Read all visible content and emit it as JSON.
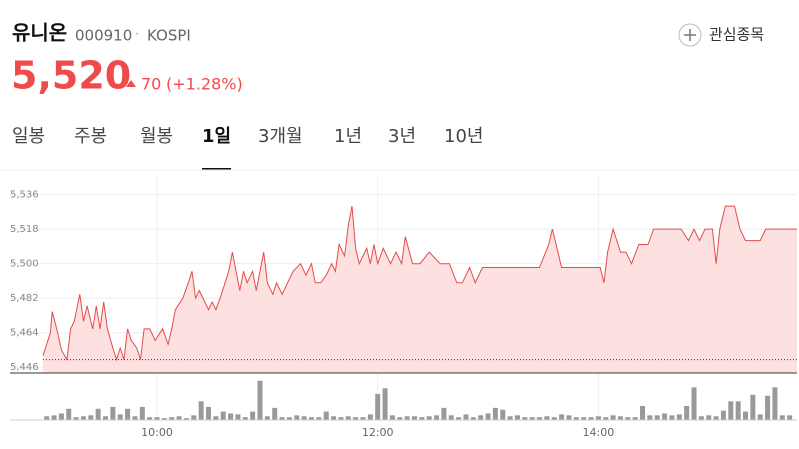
{
  "header": {
    "name": "유니온",
    "code": "000910",
    "separator": "·",
    "market": "KOSPI",
    "watch": "관심종목",
    "price": "5,520",
    "change": "70",
    "change_pct": "(+1.28%)"
  },
  "tabs": [
    "일봉",
    "주봉",
    "월봉",
    "1일",
    "3개월",
    "1년",
    "3년",
    "10년"
  ],
  "active_tab": 3,
  "chart_data": {
    "type": "line",
    "step": true,
    "color": "#e34b4b",
    "area_color": "#fde1e1",
    "baseline": 5450,
    "grid": true,
    "xlim": [
      538,
      948
    ],
    "ylim": [
      5443,
      5541
    ],
    "xticks": [
      {
        "value": 600,
        "label": "10:00"
      },
      {
        "value": 720,
        "label": "12:00"
      },
      {
        "value": 840,
        "label": "14:00"
      }
    ],
    "yticks": [
      {
        "value": 5446,
        "label": "5,446"
      },
      {
        "value": 5464,
        "label": "5,464"
      },
      {
        "value": 5482,
        "label": "5,482"
      },
      {
        "value": 5500,
        "label": "5,500"
      },
      {
        "value": 5518,
        "label": "5,518"
      },
      {
        "value": 5536,
        "label": "5,536"
      }
    ],
    "x": [
      538,
      542,
      543,
      546,
      548,
      551,
      553,
      555,
      558,
      560,
      562,
      565,
      567,
      569,
      571,
      573,
      576,
      578,
      580,
      582,
      584,
      586,
      589,
      591,
      593,
      596,
      599,
      603,
      606,
      608,
      610,
      614,
      617,
      619,
      621,
      623,
      626,
      628,
      630,
      632,
      635,
      639,
      641,
      643,
      645,
      647,
      649,
      652,
      654,
      656,
      658,
      660,
      663,
      665,
      668,
      671,
      674,
      678,
      681,
      684,
      686,
      689,
      692,
      695,
      697,
      699,
      702,
      704,
      706,
      708,
      710,
      714,
      716,
      718,
      720,
      723,
      727,
      730,
      733,
      735,
      739,
      743,
      748,
      754,
      759,
      763,
      766,
      770,
      773,
      777,
      786,
      797,
      808,
      813,
      815,
      817,
      820,
      830,
      841,
      843,
      845,
      848,
      852,
      855,
      858,
      862,
      867,
      870,
      879,
      885,
      889,
      892,
      895,
      898,
      902,
      904,
      906,
      909,
      914,
      917,
      920,
      923,
      928,
      931,
      948
    ],
    "series": [
      {
        "name": "price",
        "values": [
          5452,
          5464,
          5475,
          5464,
          5455,
          5450,
          5466,
          5470,
          5484,
          5470,
          5478,
          5466,
          5478,
          5466,
          5480,
          5466,
          5456,
          5450,
          5456,
          5450,
          5466,
          5460,
          5456,
          5450,
          5466,
          5466,
          5460,
          5466,
          5458,
          5466,
          5476,
          5482,
          5490,
          5496,
          5482,
          5486,
          5480,
          5476,
          5480,
          5476,
          5484,
          5496,
          5506,
          5496,
          5486,
          5496,
          5490,
          5496,
          5486,
          5496,
          5506,
          5490,
          5484,
          5490,
          5484,
          5490,
          5496,
          5500,
          5494,
          5500,
          5490,
          5490,
          5494,
          5500,
          5496,
          5510,
          5504,
          5520,
          5530,
          5508,
          5500,
          5508,
          5500,
          5510,
          5500,
          5508,
          5500,
          5506,
          5500,
          5514,
          5500,
          5500,
          5506,
          5500,
          5500,
          5490,
          5490,
          5498,
          5490,
          5498,
          5498,
          5498,
          5498,
          5510,
          5518,
          5510,
          5498,
          5498,
          5498,
          5490,
          5506,
          5518,
          5506,
          5506,
          5500,
          5510,
          5510,
          5518,
          5518,
          5518,
          5512,
          5518,
          5512,
          5518,
          5518,
          5500,
          5518,
          5530,
          5530,
          5518,
          5512,
          5512,
          5512,
          5518,
          5518
        ]
      }
    ],
    "volume": {
      "color": "#999999",
      "vlim": [
        0,
        45
      ],
      "x": [
        540,
        544,
        548,
        552,
        556,
        560,
        564,
        568,
        572,
        576,
        580,
        584,
        588,
        592,
        596,
        600,
        604,
        608,
        612,
        616,
        620,
        624,
        628,
        632,
        636,
        640,
        644,
        648,
        652,
        656,
        660,
        664,
        668,
        672,
        676,
        680,
        684,
        688,
        692,
        696,
        700,
        704,
        708,
        712,
        716,
        720,
        724,
        728,
        732,
        736,
        740,
        744,
        748,
        752,
        756,
        760,
        764,
        768,
        772,
        776,
        780,
        784,
        788,
        792,
        796,
        800,
        804,
        808,
        812,
        816,
        820,
        824,
        828,
        832,
        836,
        840,
        844,
        848,
        852,
        856,
        860,
        864,
        868,
        872,
        876,
        880,
        884,
        888,
        892,
        896,
        900,
        904,
        908,
        912,
        916,
        920,
        924,
        928,
        932,
        936,
        940,
        944
      ],
      "values": [
        4,
        5,
        7,
        12,
        3,
        4,
        5,
        12,
        4,
        14,
        6,
        12,
        4,
        14,
        3,
        3,
        2,
        3,
        4,
        2,
        5,
        20,
        14,
        4,
        9,
        7,
        6,
        3,
        9,
        42,
        4,
        13,
        3,
        3,
        5,
        4,
        3,
        3,
        9,
        4,
        3,
        4,
        3,
        3,
        6,
        28,
        34,
        5,
        3,
        4,
        4,
        3,
        4,
        5,
        13,
        5,
        3,
        6,
        3,
        5,
        7,
        13,
        11,
        4,
        5,
        3,
        3,
        3,
        4,
        3,
        6,
        5,
        3,
        3,
        3,
        4,
        3,
        5,
        4,
        3,
        3,
        15,
        5,
        5,
        7,
        5,
        6,
        15,
        35,
        4,
        5,
        4,
        10,
        20,
        20,
        9,
        27,
        6,
        26,
        35,
        5,
        5
      ]
    }
  }
}
